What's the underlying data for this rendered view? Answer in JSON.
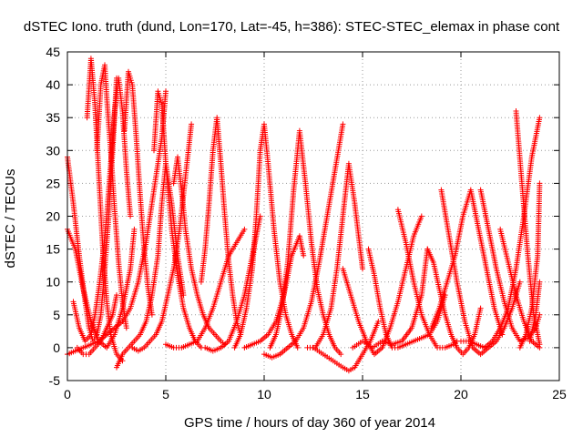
{
  "chart_data": {
    "type": "scatter",
    "title": "dSTEC Iono. truth (dund, Lon=170, Lat=-45, h=386): STEC-STEC_elemax in phase cont",
    "xlabel": "GPS time / hours of day 360 of year 2014",
    "ylabel": "dSTEC  / TECUs",
    "xlim": [
      0,
      25
    ],
    "ylim": [
      -5,
      45
    ],
    "xticks": [
      0,
      5,
      10,
      15,
      20,
      25
    ],
    "yticks": [
      -5,
      0,
      5,
      10,
      15,
      20,
      25,
      30,
      35,
      40,
      45
    ],
    "grid": true,
    "marker": "+",
    "color": "#ff0000",
    "series": [
      {
        "x": [
          0.0,
          0.3,
          0.6,
          0.9,
          1.1,
          1.3,
          1.5,
          1.7,
          1.9,
          2.1,
          2.3,
          2.5
        ],
        "values": [
          29,
          22,
          14,
          7,
          3,
          1,
          2,
          5,
          12,
          20,
          30,
          41
        ]
      },
      {
        "x": [
          0.0,
          0.4,
          0.8,
          1.2,
          1.6,
          2.0,
          2.4,
          2.8,
          3.2,
          3.4
        ],
        "values": [
          18,
          15,
          9,
          4,
          1,
          0,
          2,
          6,
          12,
          18
        ]
      },
      {
        "x": [
          0.0,
          0.4,
          0.8,
          1.2,
          1.6,
          2.0,
          2.4,
          2.8,
          3.2,
          3.6,
          4.0,
          4.4,
          4.8,
          5.0
        ],
        "values": [
          -1,
          -0.5,
          0,
          0.5,
          1,
          2,
          3,
          4,
          6,
          10,
          16,
          24,
          32,
          39
        ]
      },
      {
        "x": [
          0.3,
          0.6,
          0.9,
          1.2,
          1.4,
          1.6,
          1.8,
          2.0,
          2.2,
          2.4,
          2.6,
          2.8,
          3.0,
          3.2
        ],
        "values": [
          7,
          3,
          1,
          2,
          5,
          9,
          14,
          20,
          28,
          36,
          41,
          36,
          27,
          20
        ]
      },
      {
        "x": [
          1.0,
          1.2,
          1.4,
          1.6,
          1.8,
          2.0,
          2.2,
          2.5,
          2.8
        ],
        "values": [
          35,
          44,
          37,
          26,
          15,
          7,
          2,
          -1,
          -2
        ]
      },
      {
        "x": [
          0.5,
          0.8,
          1.1,
          1.4,
          1.7,
          2.0,
          2.3,
          2.5
        ],
        "values": [
          0,
          -1,
          -1,
          0,
          1,
          3,
          5,
          8
        ]
      },
      {
        "x": [
          1.5,
          1.7,
          1.9,
          2.0,
          2.2,
          2.4,
          2.6,
          2.8,
          3.0
        ],
        "values": [
          30,
          40,
          43,
          38,
          30,
          21,
          13,
          7,
          3
        ]
      },
      {
        "x": [
          2.9,
          3.1,
          3.3,
          3.5,
          3.7,
          3.9,
          4.1,
          4.3
        ],
        "values": [
          33,
          42,
          40,
          32,
          23,
          15,
          9,
          5
        ]
      },
      {
        "x": [
          2.5,
          2.8,
          3.1,
          3.4,
          3.7,
          4.0,
          4.3,
          4.6,
          4.8,
          5.0,
          5.3,
          5.6,
          5.9
        ],
        "values": [
          -3,
          -1,
          0,
          1,
          2,
          4,
          8,
          14,
          22,
          28,
          22,
          14,
          8
        ]
      },
      {
        "x": [
          4.4,
          4.6,
          4.8,
          5.0,
          5.3,
          5.6,
          5.9,
          6.2,
          6.5,
          6.8
        ],
        "values": [
          30,
          39,
          37,
          28,
          18,
          11,
          6,
          3,
          1,
          0
        ]
      },
      {
        "x": [
          3.3,
          3.6,
          3.9,
          4.2,
          4.5,
          4.8,
          5.1,
          5.4,
          5.7,
          6.0,
          6.3
        ],
        "values": [
          0,
          -0.5,
          0,
          1,
          2,
          4,
          8,
          12,
          18,
          26,
          34
        ]
      },
      {
        "x": [
          5.4,
          5.6,
          5.8,
          6.0,
          6.3,
          6.6,
          6.9,
          7.2,
          7.5,
          7.8,
          8.0
        ],
        "values": [
          25,
          29,
          24,
          18,
          12,
          8,
          5,
          3,
          2,
          1,
          0.5
        ]
      },
      {
        "x": [
          5.0,
          5.4,
          5.8,
          6.2,
          6.6,
          7.0,
          7.4,
          7.8,
          8.2,
          8.6,
          9.0
        ],
        "values": [
          0.5,
          0,
          0,
          0.5,
          1,
          3,
          6,
          10,
          14,
          16,
          18
        ]
      },
      {
        "x": [
          6.8,
          7.0,
          7.2,
          7.4,
          7.6,
          7.8,
          8.0,
          8.2,
          8.4,
          8.6,
          8.8
        ],
        "values": [
          10,
          15,
          22,
          30,
          35,
          28,
          20,
          13,
          8,
          4,
          2
        ]
      },
      {
        "x": [
          7.0,
          7.4,
          7.8,
          8.2,
          8.6,
          9.0,
          9.4,
          9.8
        ],
        "values": [
          0,
          -0.5,
          0,
          1,
          4,
          8,
          14,
          20
        ]
      },
      {
        "x": [
          8.5,
          8.8,
          9.1,
          9.4,
          9.6,
          9.8,
          10.0,
          10.2,
          10.5,
          10.8,
          11.1,
          11.4,
          11.7
        ],
        "values": [
          0,
          2,
          6,
          12,
          20,
          30,
          34,
          28,
          18,
          10,
          5,
          2,
          0
        ]
      },
      {
        "x": [
          9.0,
          9.4,
          9.8,
          10.2,
          10.6,
          11.0,
          11.4,
          11.8,
          12.0
        ],
        "values": [
          0,
          0.5,
          1,
          2,
          4,
          8,
          14,
          17,
          14
        ]
      },
      {
        "x": [
          10.3,
          10.6,
          10.9,
          11.2,
          11.5,
          11.8,
          12.1,
          12.4,
          12.7,
          13.0,
          13.3,
          13.6,
          13.9
        ],
        "values": [
          0,
          2,
          6,
          13,
          24,
          33,
          25,
          16,
          9,
          5,
          2,
          0,
          -1
        ]
      },
      {
        "x": [
          10.0,
          10.4,
          10.8,
          11.2,
          11.6,
          12.0,
          12.4,
          12.8,
          13.2,
          13.6,
          14.0
        ],
        "values": [
          -1,
          -1.5,
          -1,
          0,
          1,
          3,
          7,
          13,
          20,
          27,
          34
        ]
      },
      {
        "x": [
          12.2,
          12.6,
          13.0,
          13.4,
          13.7,
          14.0,
          14.3,
          14.6,
          15.0
        ],
        "values": [
          0,
          0,
          2,
          6,
          12,
          20,
          28,
          22,
          12
        ]
      },
      {
        "x": [
          12.5,
          13.0,
          13.5,
          14.0,
          14.3,
          14.6,
          15.0,
          15.4,
          15.8
        ],
        "values": [
          0,
          -1,
          -2,
          -3,
          -3.5,
          -3,
          -1,
          1,
          4
        ]
      },
      {
        "x": [
          14.0,
          14.4,
          14.8,
          15.2,
          15.6,
          16.0,
          16.4,
          16.8,
          17.2,
          17.6,
          18.0
        ],
        "values": [
          12,
          8,
          4,
          1,
          -1,
          0,
          3,
          7,
          12,
          17,
          20
        ]
      },
      {
        "x": [
          14.5,
          15.0,
          15.5,
          16.0,
          16.5,
          17.0,
          17.5,
          18.0,
          18.3
        ],
        "values": [
          0,
          1,
          0,
          1,
          0.5,
          1,
          3,
          8,
          15
        ]
      },
      {
        "x": [
          15.3,
          15.6,
          15.9,
          16.2,
          16.5,
          16.8,
          17.2,
          17.6,
          18.0,
          18.4,
          18.8,
          19.2
        ],
        "values": [
          15,
          11,
          6,
          2,
          0,
          0,
          0.5,
          1,
          1.5,
          2,
          4,
          8
        ]
      },
      {
        "x": [
          16.8,
          17.2,
          17.6,
          18.0,
          18.4,
          18.8,
          19.2,
          19.6,
          19.8
        ],
        "values": [
          21,
          16,
          10,
          5,
          2,
          0,
          0,
          0.5,
          1
        ]
      },
      {
        "x": [
          18.3,
          18.6,
          18.9,
          19.2,
          19.5,
          19.8,
          20.1,
          20.4,
          20.7,
          21.0
        ],
        "values": [
          15,
          13,
          9,
          5,
          2,
          0,
          -1,
          0,
          2,
          6
        ]
      },
      {
        "x": [
          18.5,
          18.9,
          19.3,
          19.7,
          20.1,
          20.5,
          20.9,
          21.3,
          21.7,
          22.1
        ],
        "values": [
          3,
          6,
          10,
          14,
          20,
          24,
          18,
          12,
          6,
          2
        ]
      },
      {
        "x": [
          19.0,
          19.4,
          19.8,
          20.2,
          20.6,
          21.0,
          21.4,
          21.8,
          22.2,
          22.6,
          23.0
        ],
        "values": [
          24,
          17,
          10,
          4,
          0,
          -1,
          0,
          1,
          3,
          6,
          10
        ]
      },
      {
        "x": [
          20.0,
          20.4,
          20.8,
          21.2,
          21.6,
          22.0,
          22.4,
          22.8,
          23.2,
          23.6,
          24.0
        ],
        "values": [
          1,
          1,
          0.5,
          0,
          1,
          3,
          6,
          12,
          20,
          29,
          35
        ]
      },
      {
        "x": [
          21.0,
          21.4,
          21.8,
          22.2,
          22.6,
          23.0,
          23.4,
          23.8,
          24.0
        ],
        "values": [
          24,
          18,
          12,
          7,
          3,
          1,
          1.5,
          3,
          5
        ]
      },
      {
        "x": [
          22.0,
          22.4,
          22.8,
          23.2,
          23.6,
          24.0
        ],
        "values": [
          18,
          13,
          8,
          4,
          1,
          0
        ]
      },
      {
        "x": [
          22.8,
          23.1,
          23.4,
          23.7,
          24.0
        ],
        "values": [
          36,
          25,
          14,
          5,
          0.5
        ]
      },
      {
        "x": [
          23.0,
          23.3,
          23.6,
          23.9,
          24.0
        ],
        "values": [
          0,
          2,
          6,
          14,
          25
        ]
      },
      {
        "x": [
          23.5,
          23.8,
          24.0
        ],
        "values": [
          1,
          5,
          10
        ]
      }
    ]
  }
}
